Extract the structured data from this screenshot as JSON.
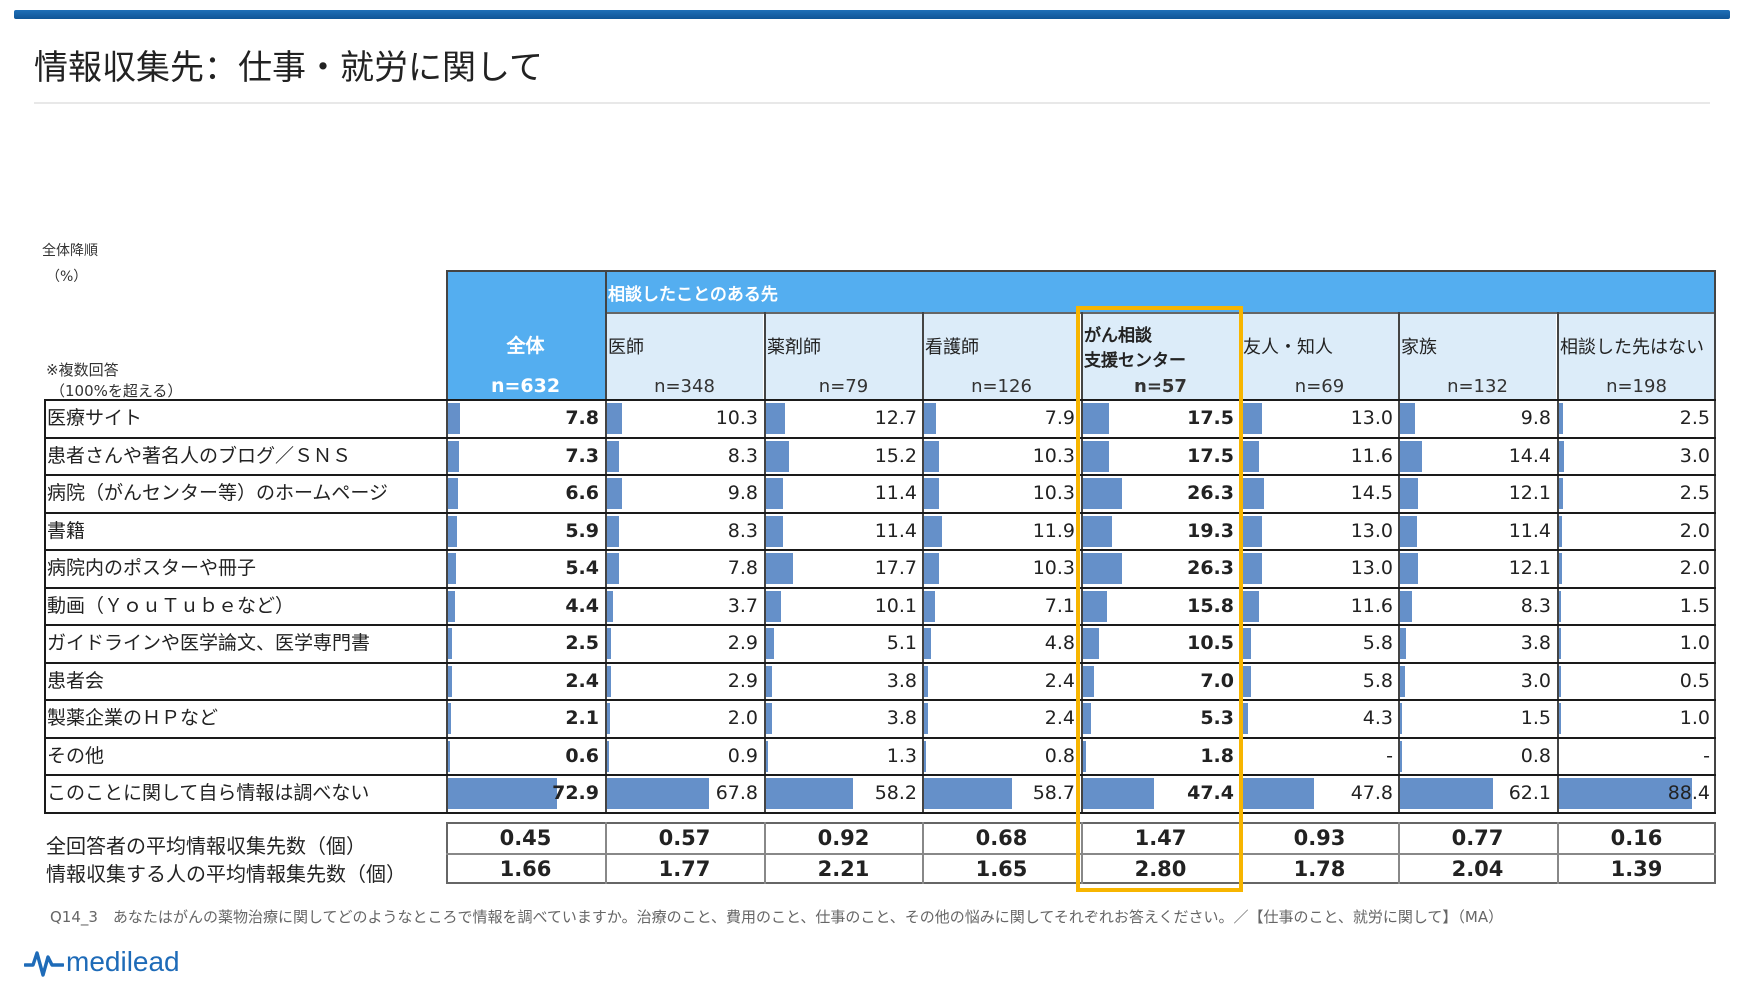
{
  "title": "情報収集先：仕事・就労に関して",
  "notes": {
    "sort": "全体降順",
    "unit": "（%）",
    "multi_1": "※複数回答",
    "multi_2": "（100%を超える）"
  },
  "header": {
    "total_label": "全体",
    "group_label": "相談したことのある先",
    "total_n": "n=632"
  },
  "colors": {
    "bar": "#6590c9",
    "header_blue": "#54aef0",
    "header_light": "#dcecf9",
    "highlight": "#f7b500"
  },
  "chart_data": {
    "type": "table",
    "columns": [
      {
        "label_lines": [
          "全体"
        ],
        "n": "n=632"
      },
      {
        "label_lines": [
          "医師"
        ],
        "n": "n=348"
      },
      {
        "label_lines": [
          "薬剤師"
        ],
        "n": "n=79"
      },
      {
        "label_lines": [
          "看護師"
        ],
        "n": "n=126"
      },
      {
        "label_lines": [
          "がん相談",
          "支援センター"
        ],
        "n": "n=57"
      },
      {
        "label_lines": [
          "友人・知人"
        ],
        "n": "n=69"
      },
      {
        "label_lines": [
          "家族"
        ],
        "n": "n=132"
      },
      {
        "label_lines": [
          "相談した先はない"
        ],
        "n": "n=198"
      }
    ],
    "rows": [
      {
        "label": "医療サイト",
        "values": [
          "7.8",
          "10.3",
          "12.7",
          "7.9",
          "17.5",
          "13.0",
          "9.8",
          "2.5"
        ]
      },
      {
        "label": "患者さんや著名人のブログ／ＳＮＳ",
        "values": [
          "7.3",
          "8.3",
          "15.2",
          "10.3",
          "17.5",
          "11.6",
          "14.4",
          "3.0"
        ]
      },
      {
        "label": "病院（がんセンター等）のホームページ",
        "values": [
          "6.6",
          "9.8",
          "11.4",
          "10.3",
          "26.3",
          "14.5",
          "12.1",
          "2.5"
        ]
      },
      {
        "label": "書籍",
        "values": [
          "5.9",
          "8.3",
          "11.4",
          "11.9",
          "19.3",
          "13.0",
          "11.4",
          "2.0"
        ]
      },
      {
        "label": "病院内のポスターや冊子",
        "values": [
          "5.4",
          "7.8",
          "17.7",
          "10.3",
          "26.3",
          "13.0",
          "12.1",
          "2.0"
        ]
      },
      {
        "label": "動画（ＹｏｕＴｕｂｅなど）",
        "values": [
          "4.4",
          "3.7",
          "10.1",
          "7.1",
          "15.8",
          "11.6",
          "8.3",
          "1.5"
        ]
      },
      {
        "label": "ガイドラインや医学論文、医学専門書",
        "values": [
          "2.5",
          "2.9",
          "5.1",
          "4.8",
          "10.5",
          "5.8",
          "3.8",
          "1.0"
        ]
      },
      {
        "label": "患者会",
        "values": [
          "2.4",
          "2.9",
          "3.8",
          "2.4",
          "7.0",
          "5.8",
          "3.0",
          "0.5"
        ]
      },
      {
        "label": "製薬企業のＨＰなど",
        "values": [
          "2.1",
          "2.0",
          "3.8",
          "2.4",
          "5.3",
          "4.3",
          "1.5",
          "1.0"
        ]
      },
      {
        "label": "その他",
        "values": [
          "0.6",
          "0.9",
          "1.3",
          "0.8",
          "1.8",
          "-",
          "0.8",
          "-"
        ]
      },
      {
        "label": "このことに関して自ら情報は調べない",
        "values": [
          "72.9",
          "67.8",
          "58.2",
          "58.7",
          "47.4",
          "47.8",
          "62.1",
          "88.4"
        ]
      }
    ],
    "bold_columns": [
      0,
      4
    ],
    "scale_max": 100,
    "highlight_column": 4
  },
  "averages": {
    "labels": [
      "全回答者の平均情報収集先数（個）",
      "情報収集する人の平均情報集先数（個）"
    ],
    "values": [
      [
        "0.45",
        "0.57",
        "0.92",
        "0.68",
        "1.47",
        "0.93",
        "0.77",
        "0.16"
      ],
      [
        "1.66",
        "1.77",
        "2.21",
        "1.65",
        "2.80",
        "1.78",
        "2.04",
        "1.39"
      ]
    ]
  },
  "footnote": "Q14_3　あなたはがんの薬物治療に関してどのようなところで情報を調べていますか。治療のこと、費用のこと、仕事のこと、その他の悩みに関してそれぞれお答えください。／【仕事のこと、就労に関して】（MA）",
  "logo": {
    "text": "medilead",
    "icon": "pulse-wave-icon"
  }
}
